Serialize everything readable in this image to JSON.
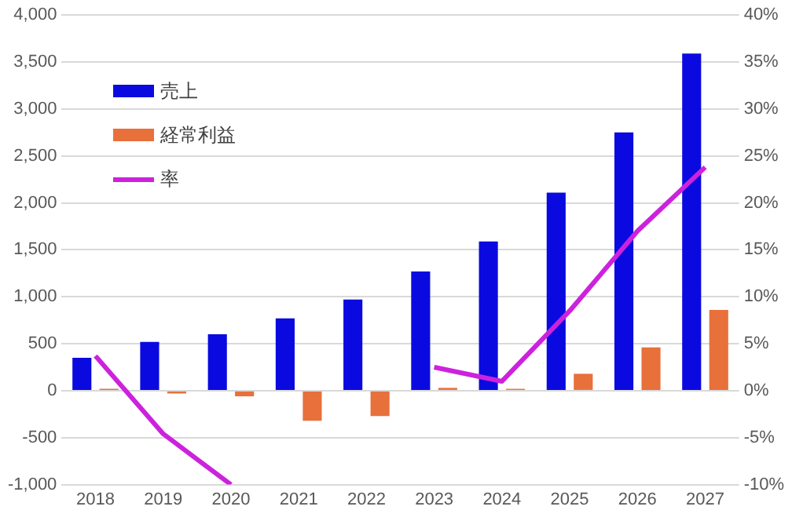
{
  "chart_data": {
    "type": "bar",
    "categories": [
      "2018",
      "2019",
      "2020",
      "2021",
      "2022",
      "2023",
      "2024",
      "2025",
      "2026",
      "2027"
    ],
    "series": [
      {
        "name": "売上",
        "color": "#0a0ae0",
        "values": [
          350,
          520,
          600,
          770,
          970,
          1270,
          1590,
          2110,
          2750,
          3590
        ]
      },
      {
        "name": "経常利益",
        "color": "#e8703a",
        "values": [
          20,
          -30,
          -60,
          -320,
          -270,
          30,
          20,
          180,
          460,
          860
        ]
      },
      {
        "name": "率",
        "type": "line",
        "axis": "y2",
        "color": "#cc22dd",
        "values": [
          3.7,
          -4.6,
          -10,
          null,
          null,
          2.5,
          1,
          8.5,
          17,
          23.8
        ]
      }
    ],
    "ylim": [
      -1000,
      4000
    ],
    "yticks": [
      {
        "value": -1000,
        "label": "-1,000"
      },
      -500,
      0,
      500,
      {
        "value": 1000,
        "label": "1,000"
      },
      {
        "value": 1500,
        "label": "1,500"
      },
      {
        "value": 2000,
        "label": "2,000"
      },
      {
        "value": 2500,
        "label": "2,500"
      },
      {
        "value": 3000,
        "label": "3,000"
      },
      {
        "value": 3500,
        "label": "3,500"
      },
      {
        "value": 4000,
        "label": "4,000"
      }
    ],
    "y2lim": [
      -10,
      40
    ],
    "y2ticks": [
      {
        "value": -10,
        "label": "-10%"
      },
      {
        "value": -5,
        "label": "-5%"
      },
      {
        "value": 0,
        "label": "0%"
      },
      {
        "value": 5,
        "label": "5%"
      },
      {
        "value": 10,
        "label": "10%"
      },
      {
        "value": 15,
        "label": "15%"
      },
      {
        "value": 20,
        "label": "20%"
      },
      {
        "value": 25,
        "label": "25%"
      },
      {
        "value": 30,
        "label": "30%"
      },
      {
        "value": 35,
        "label": "35%"
      },
      {
        "value": 40,
        "label": "40%"
      }
    ],
    "grid": "y",
    "legend": "top left",
    "marker": "none",
    "line_style": "solid"
  }
}
